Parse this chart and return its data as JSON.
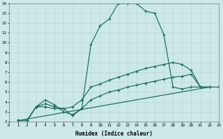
{
  "xlabel": "Humidex (Indice chaleur)",
  "bg_color": "#cce8e8",
  "grid_color": "#b8d8d8",
  "line_color": "#1a6b5a",
  "x_min": 0,
  "x_max": 23,
  "y_min": 2,
  "y_max": 14,
  "line1_x": [
    1,
    2,
    3,
    4,
    5,
    6,
    7,
    8,
    9,
    10,
    11,
    12,
    13,
    14,
    15,
    16,
    17,
    18,
    19,
    20,
    21
  ],
  "line1_y": [
    2.1,
    2.1,
    3.5,
    3.5,
    3.3,
    3.3,
    2.6,
    3.3,
    9.8,
    11.7,
    12.4,
    14.0,
    14.0,
    14.0,
    13.2,
    13.0,
    10.8,
    5.5,
    5.3,
    5.5,
    5.5
  ],
  "line2_x": [
    1,
    2,
    3,
    4,
    5,
    6,
    7,
    8,
    9,
    10,
    11,
    12,
    13,
    14,
    15,
    16,
    17,
    18,
    19,
    20,
    21,
    22
  ],
  "line2_y": [
    2.1,
    2.1,
    3.5,
    3.8,
    3.5,
    3.3,
    3.5,
    4.2,
    5.5,
    5.8,
    6.2,
    6.5,
    6.8,
    7.1,
    7.4,
    7.6,
    7.8,
    8.0,
    7.8,
    7.2,
    5.5,
    5.5
  ],
  "line3_x": [
    1,
    22
  ],
  "line3_y": [
    2.1,
    5.5
  ],
  "line4_x": [
    1,
    2,
    3,
    4,
    5,
    6,
    7,
    8,
    9,
    10,
    11,
    12,
    13,
    14,
    15,
    16,
    17,
    18,
    19,
    20,
    21,
    22,
    23
  ],
  "line4_y": [
    2.1,
    2.1,
    3.5,
    4.2,
    3.7,
    3.0,
    2.7,
    3.3,
    4.2,
    4.6,
    5.0,
    5.2,
    5.5,
    5.7,
    5.9,
    6.1,
    6.3,
    6.5,
    6.6,
    6.8,
    5.5,
    5.5,
    5.5
  ],
  "yticks": [
    2,
    3,
    4,
    5,
    6,
    7,
    8,
    9,
    10,
    11,
    12,
    13,
    14
  ],
  "xticks": [
    0,
    1,
    2,
    3,
    4,
    5,
    6,
    7,
    8,
    9,
    10,
    11,
    12,
    13,
    14,
    15,
    16,
    17,
    18,
    19,
    20,
    21,
    22,
    23
  ]
}
